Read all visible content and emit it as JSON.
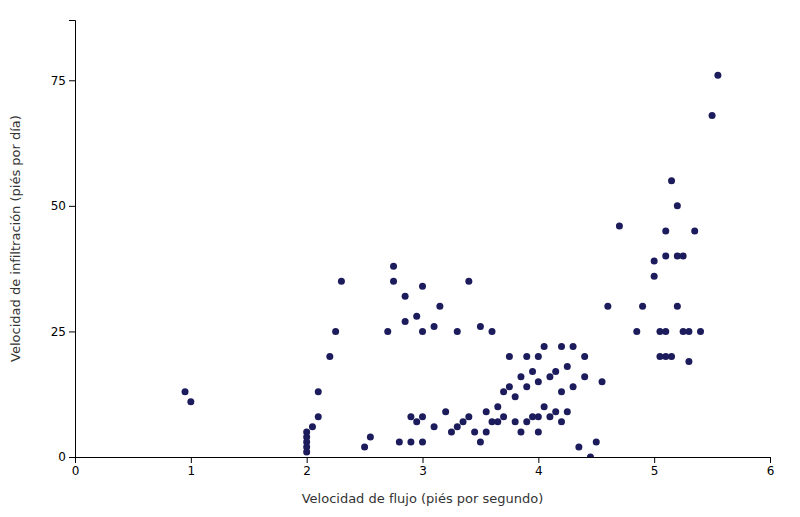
{
  "chart_data": {
    "type": "scatter",
    "x": [
      0.95,
      1.0,
      2.0,
      2.0,
      2.0,
      2.0,
      2.0,
      2.05,
      2.1,
      2.1,
      2.2,
      2.25,
      2.3,
      2.5,
      2.55,
      2.7,
      2.75,
      2.75,
      2.8,
      2.85,
      2.85,
      2.9,
      2.9,
      2.95,
      2.95,
      3.0,
      3.0,
      3.0,
      3.0,
      3.1,
      3.1,
      3.15,
      3.2,
      3.25,
      3.3,
      3.3,
      3.35,
      3.4,
      3.4,
      3.45,
      3.5,
      3.5,
      3.55,
      3.55,
      3.6,
      3.6,
      3.65,
      3.65,
      3.7,
      3.7,
      3.75,
      3.75,
      3.8,
      3.8,
      3.85,
      3.85,
      3.9,
      3.9,
      3.9,
      3.95,
      3.95,
      4.0,
      4.0,
      4.0,
      4.0,
      4.05,
      4.05,
      4.1,
      4.1,
      4.15,
      4.15,
      4.2,
      4.2,
      4.2,
      4.25,
      4.25,
      4.3,
      4.3,
      4.35,
      4.4,
      4.4,
      4.45,
      4.5,
      4.55,
      4.6,
      4.7,
      4.85,
      4.9,
      5.0,
      5.0,
      5.05,
      5.05,
      5.1,
      5.1,
      5.1,
      5.1,
      5.15,
      5.15,
      5.2,
      5.2,
      5.2,
      5.25,
      5.25,
      5.3,
      5.3,
      5.35,
      5.4,
      5.5,
      5.55
    ],
    "y": [
      13,
      11,
      2,
      1,
      5,
      4,
      3,
      6,
      8,
      13,
      20,
      25,
      35,
      2,
      4,
      25,
      35,
      38,
      3,
      27,
      32,
      3,
      8,
      7,
      28,
      3,
      8,
      25,
      34,
      6,
      26,
      30,
      9,
      5,
      6,
      25,
      7,
      35,
      8,
      5,
      3,
      26,
      5,
      9,
      7,
      25,
      7,
      10,
      8,
      13,
      14,
      20,
      7,
      12,
      5,
      16,
      7,
      14,
      20,
      8,
      17,
      5,
      8,
      15,
      20,
      10,
      22,
      8,
      16,
      9,
      17,
      7,
      13,
      22,
      9,
      18,
      14,
      22,
      2,
      16,
      20,
      0,
      3,
      15,
      30,
      46,
      25,
      30,
      36,
      39,
      20,
      25,
      20,
      25,
      40,
      45,
      20,
      55,
      30,
      40,
      50,
      25,
      40,
      19,
      25,
      45,
      25,
      68,
      76
    ],
    "color": "#1c1c5c",
    "xlabel": "Velocidad de flujo (piés por segundo)",
    "ylabel": "Velocidad de infiltración (piés por día)",
    "xlim": [
      0,
      6
    ],
    "ylim": [
      0,
      87
    ],
    "xticks": [
      0,
      1,
      2,
      3,
      4,
      5,
      6
    ],
    "yticks": [
      0,
      25,
      50,
      75
    ],
    "grid": false
  }
}
